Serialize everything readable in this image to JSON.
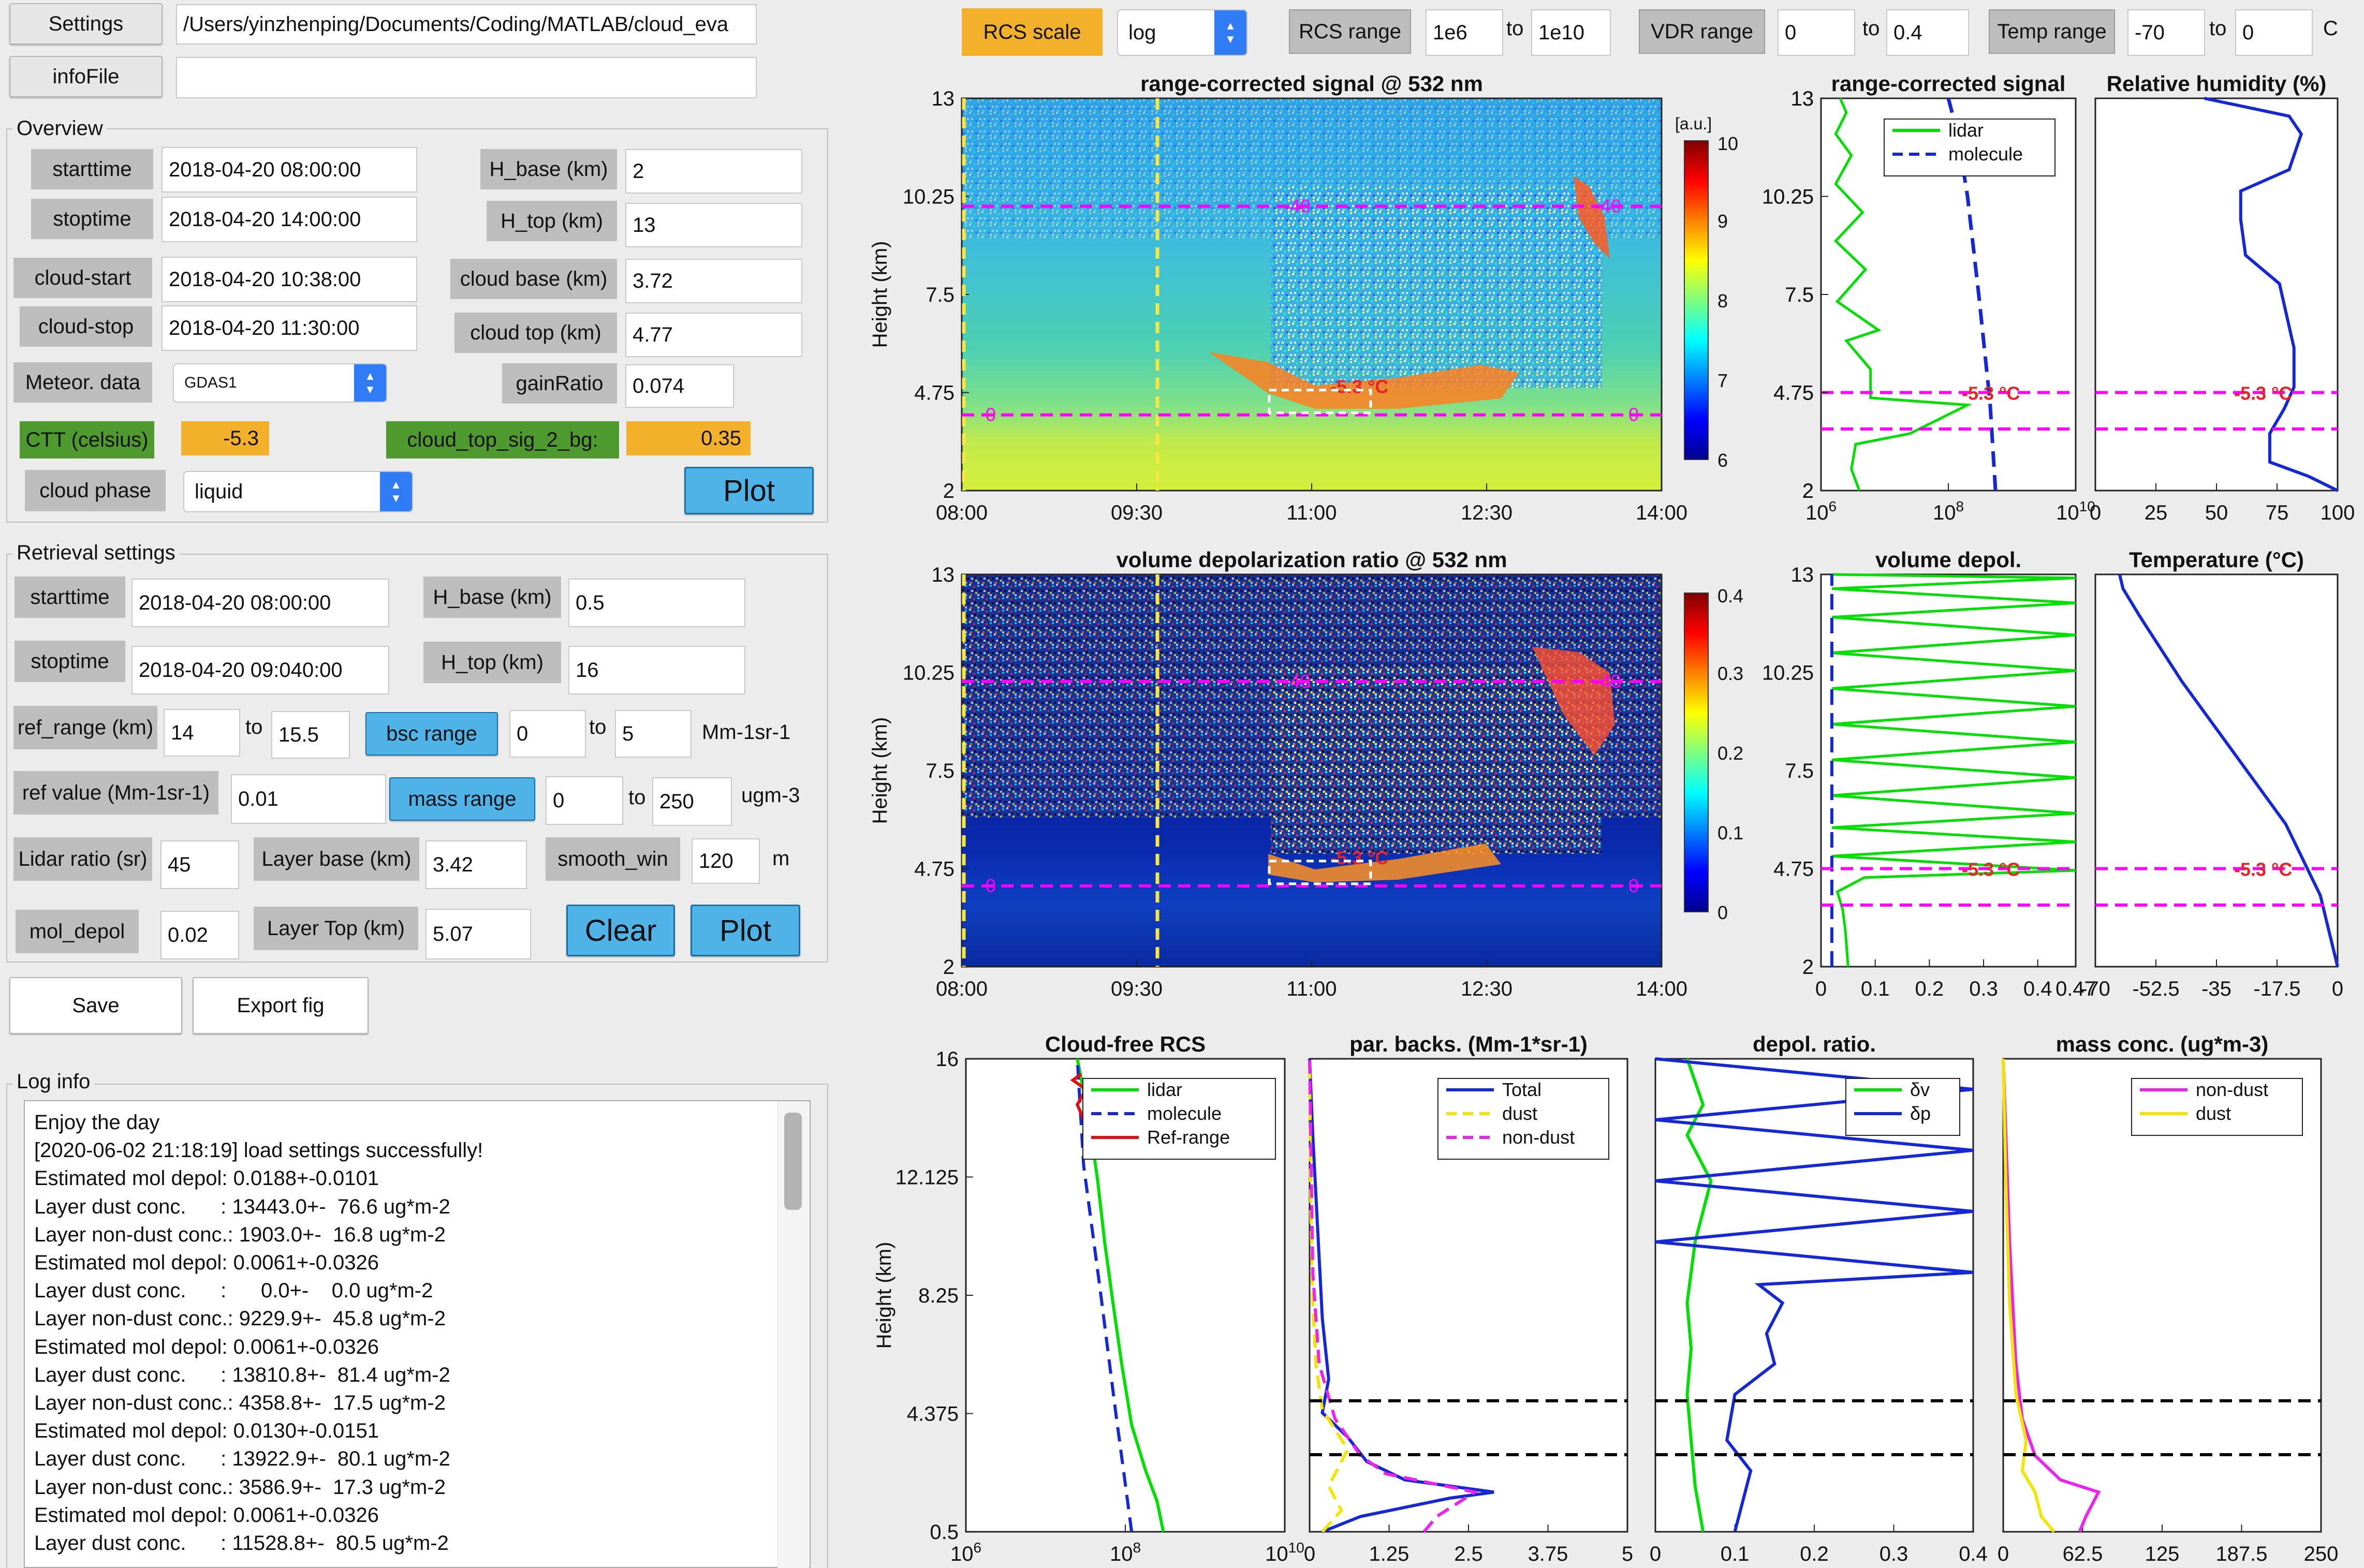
{
  "top": {
    "settings_label": "Settings",
    "path_value": "/Users/yinzhenping/Documents/Coding/MATLAB/cloud_eva",
    "infofile_label": "infoFile",
    "infofile_value": ""
  },
  "overview": {
    "title": "Overview",
    "starttime_label": "starttime",
    "starttime": "2018-04-20 08:00:00",
    "stoptime_label": "stoptime",
    "stoptime": "2018-04-20 14:00:00",
    "cloud_start_label": "cloud-start",
    "cloud_start": "2018-04-20 10:38:00",
    "cloud_stop_label": "cloud-stop",
    "cloud_stop": "2018-04-20 11:30:00",
    "meteor_label": "Meteor. data",
    "meteor_value": "GDAS1",
    "hbase_label": "H_base (km)",
    "hbase": "2",
    "htop_label": "H_top (km)",
    "htop": "13",
    "cloud_base_label": "cloud base (km)",
    "cloud_base": "3.72",
    "cloud_top_label": "cloud top (km)",
    "cloud_top": "4.77",
    "gain_label": "gainRatio",
    "gain": "0.074",
    "ctt_label": "CTT (celsius)",
    "ctt": "-5.3",
    "sig2bg_label": "cloud_top_sig_2_bg:",
    "sig2bg": "0.35",
    "phase_label": "cloud phase",
    "phase_value": "liquid",
    "plot_label": "Plot"
  },
  "retrieval": {
    "title": "Retrieval settings",
    "starttime_label": "starttime",
    "starttime": "2018-04-20 08:00:00",
    "stoptime_label": "stoptime",
    "stoptime": "2018-04-20 09:040:00",
    "hbase_label": "H_base (km)",
    "hbase": "0.5",
    "htop_label": "H_top (km)",
    "htop": "16",
    "ref_range_label": "ref_range (km)",
    "ref_range_from": "14",
    "to1": "to",
    "ref_range_to": "15.5",
    "bsc_range_label": "bsc range",
    "bsc_from": "0",
    "to2": "to",
    "bsc_to": "5",
    "bsc_unit": "Mm-1sr-1",
    "ref_value_label": "ref value (Mm-1sr-1)",
    "ref_value": "0.01",
    "mass_range_label": "mass range",
    "mass_from": "0",
    "to3": "to",
    "mass_to": "250",
    "mass_unit": "ugm-3",
    "lidar_ratio_label": "Lidar ratio (sr)",
    "lidar_ratio": "45",
    "layer_base_label": "Layer base (km)",
    "layer_base": "3.42",
    "smooth_label": "smooth_win",
    "smooth": "120",
    "smooth_unit": "m",
    "mol_depol_label": "mol_depol",
    "mol_depol": "0.02",
    "layer_top_label": "Layer Top (km)",
    "layer_top": "5.07",
    "clear_label": "Clear",
    "plot_label": "Plot"
  },
  "actions": {
    "save_label": "Save",
    "export_label": "Export fig"
  },
  "log": {
    "title": "Log info",
    "lines": [
      "Enjoy the day",
      "[2020-06-02 21:18:19] load settings successfully!",
      "Estimated mol depol: 0.0188+-0.0101",
      "Layer dust conc.      : 13443.0+-  76.6 ug*m-2",
      "Layer non-dust conc.: 1903.0+-  16.8 ug*m-2",
      "Estimated mol depol: 0.0061+-0.0326",
      "Layer dust conc.      :      0.0+-    0.0 ug*m-2",
      "Layer non-dust conc.: 9229.9+-  45.8 ug*m-2",
      "Estimated mol depol: 0.0061+-0.0326",
      "Layer dust conc.      : 13810.8+-  81.4 ug*m-2",
      "Layer non-dust conc.: 4358.8+-  17.5 ug*m-2",
      "Estimated mol depol: 0.0130+-0.0151",
      "Layer dust conc.      : 13922.9+-  80.1 ug*m-2",
      "Layer non-dust conc.: 3586.9+-  17.3 ug*m-2",
      "Estimated mol depol: 0.0061+-0.0326",
      "Layer dust conc.      : 11528.8+-  80.5 ug*m-2"
    ]
  },
  "toolbar": {
    "rcs_scale_label": "RCS scale",
    "rcs_scale_value": "log",
    "rcs_range_label": "RCS range",
    "rcs_from": "1e6",
    "to1": "to",
    "rcs_to": "1e10",
    "vdr_range_label": "VDR range",
    "vdr_from": "0",
    "to2": "to",
    "vdr_to": "0.4",
    "temp_range_label": "Temp range",
    "temp_from": "-70",
    "to3": "to",
    "temp_to": "0",
    "temp_unit": "C"
  },
  "colors": {
    "lidar": "#00e000",
    "molecule": "#1428d8",
    "refrange": "#e01010",
    "total": "#1428d8",
    "dust": "#f2e600",
    "nondust": "#ee22ee",
    "marker": "#ff00ff",
    "cloudlabel": "#e8232a"
  },
  "chart_data": [
    {
      "type": "heatmap",
      "title": "range-corrected signal @ 532 nm",
      "ylabel": "Height (km)",
      "x_ticks": [
        "08:00",
        "09:30",
        "11:00",
        "12:30",
        "14:00"
      ],
      "y_ticks": [
        "2",
        "4.75",
        "7.5",
        "10.25",
        "13"
      ],
      "ylim": [
        2,
        13
      ],
      "colorbar": {
        "unit": "[a.u.]",
        "ticks": [
          "6",
          "7",
          "8",
          "9",
          "10"
        ]
      },
      "annotations": [
        "0",
        "-40",
        "-5.3 °C",
        "0",
        "-40"
      ]
    },
    {
      "type": "heatmap",
      "title": "volume depolarization ratio @ 532 nm",
      "ylabel": "Height (km)",
      "x_ticks": [
        "08:00",
        "09:30",
        "11:00",
        "12:30",
        "14:00"
      ],
      "y_ticks": [
        "2",
        "4.75",
        "7.5",
        "10.25",
        "13"
      ],
      "ylim": [
        2,
        13
      ],
      "colorbar": {
        "ticks": [
          "0",
          "0.1",
          "0.2",
          "0.3",
          "0.4"
        ]
      },
      "annotations": [
        "0",
        "-40",
        "-5.3 °C",
        "0",
        "-40"
      ]
    },
    {
      "type": "line",
      "title": "range-corrected signal",
      "x_ticks": [
        "10^6",
        "10^8",
        "10^10"
      ],
      "y_ticks": [
        "2",
        "4.75",
        "7.5",
        "10.25",
        "13"
      ],
      "xscale": "log",
      "xlim": [
        1000000,
        10000000000
      ],
      "ylim": [
        2,
        13
      ],
      "legend": [
        "lidar",
        "molecule"
      ],
      "series": [
        {
          "name": "lidar",
          "x": [
            4000000,
            3000000,
            3500000,
            25000000,
            200000000,
            6000000,
            6000000,
            2500000,
            8000000,
            1800000,
            5000000,
            1700000,
            4500000,
            1700000,
            3000000,
            1700000,
            2500000,
            2000000
          ],
          "y": [
            2.0,
            2.6,
            3.3,
            3.6,
            4.4,
            4.6,
            5.4,
            6.2,
            6.5,
            7.3,
            8.2,
            9.0,
            9.8,
            10.6,
            11.4,
            12.0,
            12.6,
            13.0
          ]
        },
        {
          "name": "molecule",
          "x": [
            550000000,
            450000000,
            300000000,
            200000000,
            140000000,
            100000000
          ],
          "y": [
            2.0,
            4.5,
            7.5,
            10.25,
            12.0,
            13.0
          ]
        }
      ],
      "annotations": [
        "-5.3 °C"
      ]
    },
    {
      "type": "line",
      "title": "Relative humidity (%)",
      "x_ticks": [
        "0",
        "25",
        "50",
        "75",
        "100"
      ],
      "xlim": [
        0,
        100
      ],
      "ylim": [
        2,
        13
      ],
      "series": [
        {
          "x": [
            100,
            88,
            72,
            72,
            78,
            82,
            82,
            76,
            62,
            60,
            60,
            80,
            85,
            80,
            45
          ],
          "y": [
            2.0,
            2.4,
            2.8,
            3.6,
            4.3,
            4.9,
            6.0,
            7.8,
            8.6,
            9.6,
            10.4,
            11.0,
            12.0,
            12.5,
            13.0
          ]
        }
      ],
      "annotations": [
        "-5.3 °C"
      ]
    },
    {
      "type": "line",
      "title": "volume depol.",
      "x_ticks": [
        "0",
        "0.1",
        "0.2",
        "0.3",
        "0.4",
        "0.47"
      ],
      "xlim": [
        0,
        0.47
      ],
      "ylim": [
        2,
        13
      ],
      "series": [
        {
          "name": "lidar",
          "x": [
            0.05,
            0.045,
            0.04,
            0.03,
            0.08,
            0.47,
            0.02,
            0.47,
            0.02,
            0.47,
            0.02,
            0.47,
            0.02,
            0.47,
            0.02,
            0.47,
            0.02,
            0.47,
            0.02,
            0.47,
            0.02,
            0.47,
            0.02,
            0.47,
            0.02
          ],
          "y": [
            2.0,
            3.0,
            3.6,
            4.1,
            4.5,
            4.7,
            5.1,
            5.5,
            5.9,
            6.3,
            6.8,
            7.3,
            7.8,
            8.3,
            8.8,
            9.3,
            9.8,
            10.3,
            10.8,
            11.3,
            11.8,
            12.2,
            12.6,
            12.9,
            13.0
          ]
        },
        {
          "name": "molecule",
          "x": [
            0.02,
            0.02,
            0.02,
            0.02
          ],
          "y": [
            2.0,
            5.0,
            9.0,
            13.0
          ]
        }
      ],
      "annotations": [
        "-5.3 °C"
      ]
    },
    {
      "type": "line",
      "title": "Temperature (°C)",
      "x_ticks": [
        "-70",
        "-52.5",
        "-35",
        "-17.5",
        "0"
      ],
      "xlim": [
        -70,
        0
      ],
      "ylim": [
        2,
        13
      ],
      "series": [
        {
          "x": [
            0,
            -5,
            -15,
            -30,
            -45,
            -57,
            -62,
            -63
          ],
          "y": [
            2.0,
            4.0,
            6.0,
            8.0,
            10.0,
            11.8,
            12.6,
            13.0
          ]
        }
      ],
      "annotations": [
        "-5.3 °C"
      ]
    },
    {
      "type": "line",
      "title": "Cloud-free RCS",
      "ylabel": "Height (km)",
      "x_ticks": [
        "10^6",
        "10^8",
        "10^10"
      ],
      "y_ticks": [
        "0.5",
        "4.375",
        "8.25",
        "12.125",
        "16"
      ],
      "xscale": "log",
      "xlim": [
        1000000,
        10000000000
      ],
      "ylim": [
        0.5,
        16
      ],
      "legend": [
        "lidar",
        "molecule",
        "Ref-range"
      ],
      "series": [
        {
          "name": "lidar",
          "x": [
            300000000,
            250000000,
            180000000,
            120000000,
            90000000,
            70000000,
            55000000,
            45000000,
            35000000,
            25000000
          ],
          "y": [
            0.5,
            1.5,
            2.5,
            4.0,
            6.0,
            8.0,
            10.0,
            12.0,
            14.0,
            16.0
          ]
        },
        {
          "name": "molecule",
          "x": [
            120000000,
            95000000,
            75000000,
            60000000,
            48000000,
            38000000,
            30000000,
            25000000
          ],
          "y": [
            0.5,
            2.5,
            4.5,
            6.5,
            8.5,
            10.5,
            12.5,
            16.0
          ]
        },
        {
          "name": "Ref-range",
          "x": [
            30000000,
            25000000,
            32000000,
            22000000,
            28000000
          ],
          "y": [
            14.0,
            14.5,
            15.0,
            15.3,
            15.5
          ]
        }
      ]
    },
    {
      "type": "line",
      "title": "par. backs. (Mm-1*sr-1)",
      "x_ticks": [
        "0",
        "1.25",
        "2.5",
        "3.75",
        "5"
      ],
      "xlim": [
        0,
        5
      ],
      "ylim": [
        0.5,
        16
      ],
      "legend": [
        "Total",
        "dust",
        "non-dust"
      ],
      "series": [
        {
          "name": "Total",
          "x": [
            0.2,
            0.8,
            2.2,
            2.9,
            1.5,
            0.9,
            0.6,
            0.2,
            0.3,
            0.2,
            0.15,
            0.1,
            0.05,
            0.0
          ],
          "y": [
            0.5,
            1.0,
            1.6,
            1.8,
            2.2,
            2.8,
            3.6,
            4.4,
            5.5,
            7.5,
            9.5,
            11.5,
            13.5,
            16.0
          ]
        },
        {
          "name": "dust",
          "x": [
            0.2,
            0.5,
            0.3,
            0.6,
            0.2,
            0.1,
            0.05,
            0.02,
            0.0
          ],
          "y": [
            0.5,
            1.2,
            2.0,
            3.2,
            4.5,
            6.0,
            8.0,
            11.0,
            16.0
          ]
        },
        {
          "name": "non-dust",
          "x": [
            1.8,
            2.0,
            2.6,
            1.2,
            0.8,
            0.4,
            0.15,
            0.05,
            0.0
          ],
          "y": [
            0.5,
            1.0,
            1.8,
            2.4,
            3.0,
            4.2,
            6.0,
            9.0,
            16.0
          ]
        }
      ]
    },
    {
      "type": "line",
      "title": "depol. ratio.",
      "x_ticks": [
        "0",
        "0.1",
        "0.2",
        "0.3",
        "0.4"
      ],
      "xlim": [
        0,
        0.4
      ],
      "ylim": [
        0.5,
        16
      ],
      "legend": [
        "δv",
        "δp"
      ],
      "series": [
        {
          "name": "δv",
          "x": [
            0.06,
            0.05,
            0.045,
            0.04,
            0.045,
            0.04,
            0.05,
            0.07,
            0.04,
            0.06,
            0.04
          ],
          "y": [
            0.5,
            2.0,
            3.5,
            5.0,
            6.5,
            8.0,
            10.0,
            12.0,
            13.5,
            14.5,
            16.0
          ]
        },
        {
          "name": "δp",
          "x": [
            0.1,
            0.12,
            0.09,
            0.1,
            0.15,
            0.14,
            0.16,
            0.13,
            0.4,
            0.0,
            0.4,
            0.0,
            0.4,
            0.0,
            0.4,
            0.0
          ],
          "y": [
            0.5,
            2.5,
            3.5,
            5.0,
            6.0,
            7.0,
            8.0,
            8.6,
            9.0,
            10.0,
            11.0,
            12.0,
            13.0,
            14.0,
            15.0,
            16.0
          ]
        }
      ]
    },
    {
      "type": "line",
      "title": "mass conc. (ug*m-3)",
      "x_ticks": [
        "0",
        "62.5",
        "125",
        "187.5",
        "250"
      ],
      "xlim": [
        0,
        250
      ],
      "ylim": [
        0.5,
        16
      ],
      "legend": [
        "non-dust",
        "dust"
      ],
      "series": [
        {
          "name": "non-dust",
          "x": [
            60,
            65,
            75,
            45,
            25,
            15,
            10,
            5,
            0
          ],
          "y": [
            0.5,
            1.0,
            1.8,
            2.2,
            3.0,
            4.2,
            6.0,
            10.0,
            16.0
          ]
        },
        {
          "name": "dust",
          "x": [
            40,
            30,
            25,
            15,
            18,
            10,
            5,
            2,
            0
          ],
          "y": [
            0.5,
            1.0,
            1.8,
            2.5,
            3.5,
            5.0,
            8.0,
            12.0,
            16.0
          ]
        }
      ]
    }
  ]
}
